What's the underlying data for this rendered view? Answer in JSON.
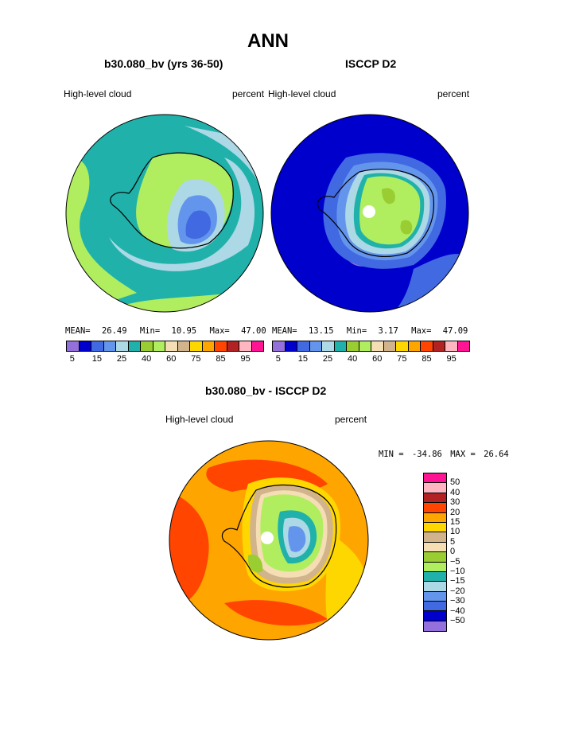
{
  "page": {
    "title": "ANN"
  },
  "panels": [
    {
      "header": "b30.080_bv (yrs 36-50)",
      "left_label": "High-level cloud",
      "right_label": "percent",
      "stats": {
        "mean_label": "MEAN=",
        "mean": "26.49",
        "min_label": "Min=",
        "min": "10.95",
        "max_label": "Max=",
        "max": "47.00"
      }
    },
    {
      "header": "ISCCP D2",
      "left_label": "High-level cloud",
      "right_label": "percent",
      "stats": {
        "mean_label": "MEAN=",
        "mean": "13.15",
        "min_label": "Min=",
        "min": "3.17",
        "max_label": "Max=",
        "max": "47.09"
      }
    }
  ],
  "diff_panel": {
    "header": "b30.080_bv - ISCCP D2",
    "left_label": "High-level cloud",
    "right_label": "percent",
    "min_label": "MIN =",
    "min": "-34.86",
    "max_label": "MAX =",
    "max": "26.64"
  },
  "colorbar_top": {
    "colors": [
      "#9370db",
      "#0000cd",
      "#4169e1",
      "#6495ed",
      "#add8e6",
      "#20b2aa",
      "#9acd32",
      "#b0ee60",
      "#f5deb3",
      "#d2b48c",
      "#ffd700",
      "#ffa500",
      "#ff4500",
      "#b22222",
      "#ffb6c1",
      "#ff1493"
    ],
    "tick_labels": [
      "5",
      "15",
      "25",
      "40",
      "60",
      "75",
      "85",
      "95"
    ]
  },
  "colorbar_diff": {
    "colors": [
      "#ff1493",
      "#ffb6c1",
      "#b22222",
      "#ff4500",
      "#ffa500",
      "#ffd700",
      "#d2b48c",
      "#f5deb3",
      "#9acd32",
      "#b0ee60",
      "#20b2aa",
      "#add8e6",
      "#6495ed",
      "#4169e1",
      "#0000cd",
      "#9370db"
    ],
    "tick_labels": [
      "50",
      "40",
      "30",
      "20",
      "15",
      "10",
      "5",
      "0",
      "−5",
      "−10",
      "−15",
      "−20",
      "−30",
      "−40",
      "−50"
    ]
  }
}
